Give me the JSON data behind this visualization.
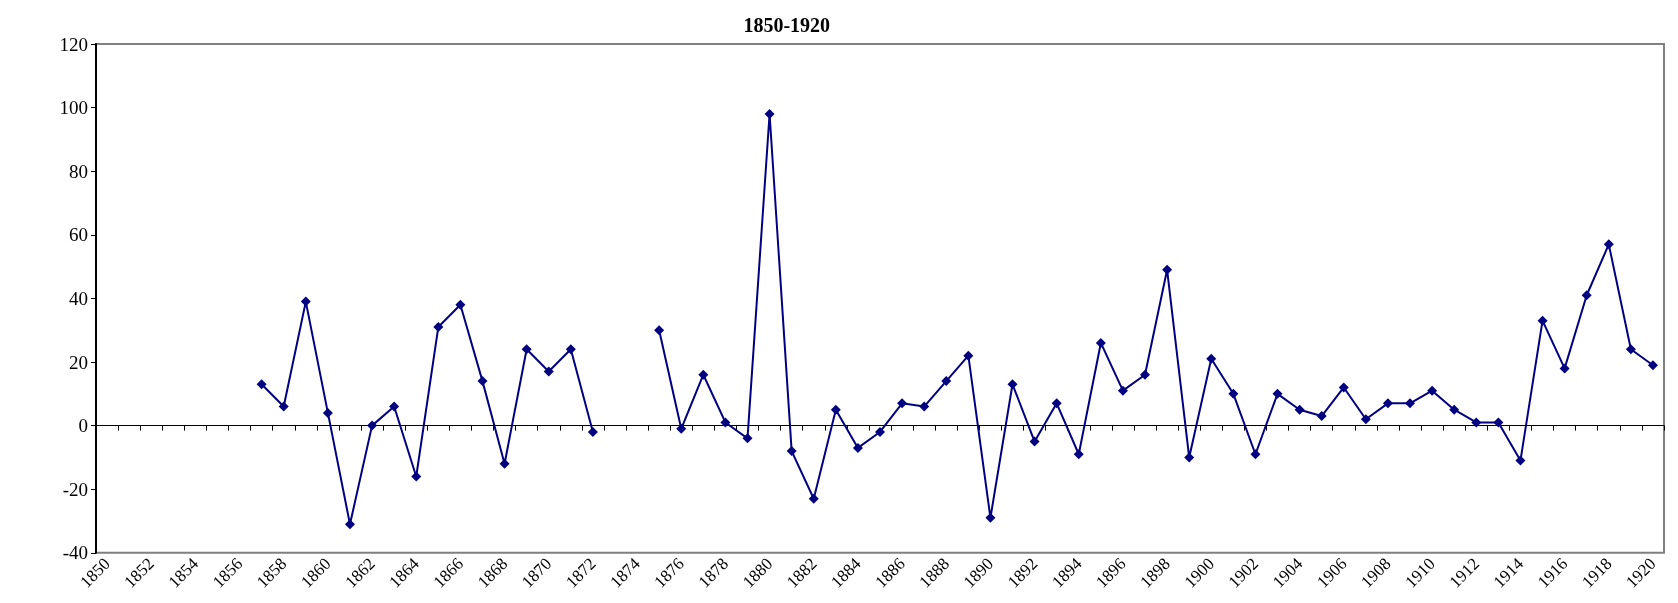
{
  "chart_data": {
    "type": "line",
    "title": "1850-1920",
    "categories": [
      "1850",
      null,
      "1852",
      null,
      "1854",
      null,
      "1856",
      null,
      "1858",
      null,
      "1860",
      null,
      "1862",
      null,
      "1864",
      null,
      "1866",
      null,
      "1868",
      null,
      "1870",
      null,
      "1872",
      null,
      "1874",
      null,
      "1876",
      null,
      "1878",
      null,
      "1880",
      null,
      "1882",
      null,
      "1884",
      null,
      "1886",
      null,
      "1888",
      null,
      "1890",
      null,
      "1892",
      null,
      "1894",
      null,
      "1896",
      null,
      "1898",
      null,
      "1900",
      null,
      "1902",
      null,
      "1904",
      null,
      "1906",
      null,
      "1908",
      null,
      "1910",
      null,
      "1912",
      null,
      "1914",
      null,
      "1916",
      null,
      "1918",
      null,
      "1920"
    ],
    "series": [
      {
        "color": "#000080",
        "values": [
          null,
          null,
          null,
          null,
          null,
          null,
          null,
          13,
          6,
          39,
          4,
          -31,
          0,
          6,
          -16,
          31,
          38,
          14,
          -12,
          24,
          17,
          24,
          -2,
          null,
          null,
          30,
          -1,
          16,
          1,
          -4,
          98,
          -8,
          -23,
          5,
          -7,
          -2,
          7,
          6,
          14,
          22,
          -29,
          13,
          -5,
          7,
          -9,
          26,
          11,
          16,
          49,
          -10,
          21,
          10,
          -9,
          10,
          5,
          3,
          12,
          2,
          7,
          7,
          11,
          5,
          1,
          1,
          -11,
          33,
          18,
          41,
          57,
          24,
          19
        ]
      }
    ],
    "ylim": [
      -40,
      120
    ],
    "yticks": [
      -40,
      -20,
      0,
      20,
      40,
      60,
      80,
      100,
      120
    ],
    "marker": "diamond",
    "line_style": "solid"
  }
}
